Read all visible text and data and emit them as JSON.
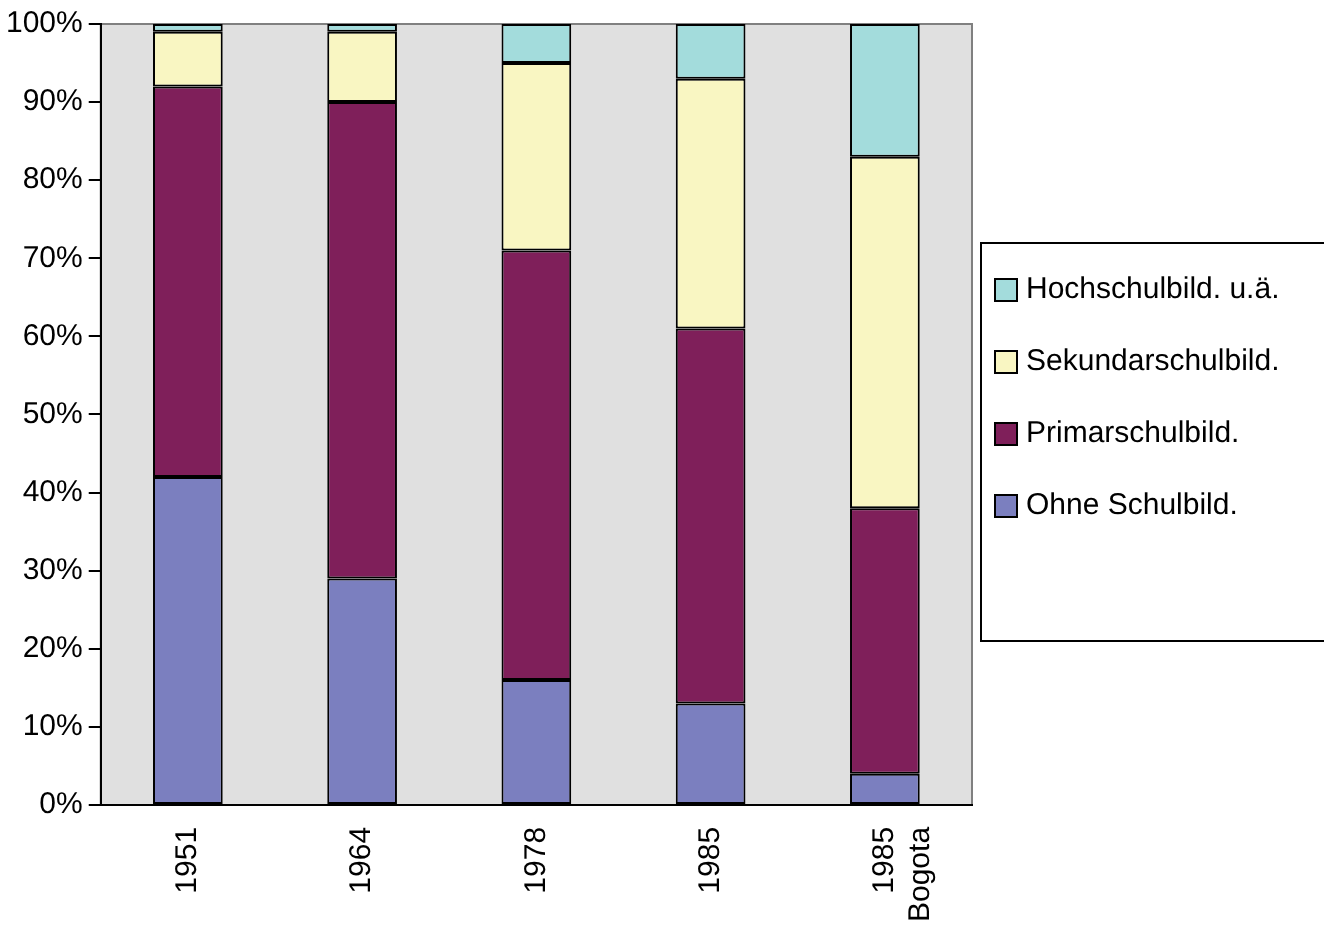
{
  "chart_data": {
    "type": "bar",
    "stacked": true,
    "categories": [
      "1951",
      "1964",
      "1978",
      "1985",
      "1985 Bogota"
    ],
    "series": [
      {
        "name": "Ohne Schulbild.",
        "color": "#7b7fbf",
        "values": [
          42,
          29,
          16,
          13,
          4
        ]
      },
      {
        "name": "Primarschulbild.",
        "color": "#7f1f5a",
        "values": [
          50,
          61,
          55,
          48,
          34
        ]
      },
      {
        "name": "Sekundarschulbild.",
        "color": "#f9f6c2",
        "values": [
          7,
          9,
          24,
          32,
          45
        ]
      },
      {
        "name": "Hochschulbild. u.ä.",
        "color": "#a3dcdc",
        "values": [
          1,
          1,
          5,
          7,
          17
        ]
      }
    ],
    "ylim": [
      0,
      100
    ],
    "yticks": [
      {
        "value": 0,
        "label": "0%"
      },
      {
        "value": 10,
        "label": "10%"
      },
      {
        "value": 20,
        "label": "20%"
      },
      {
        "value": 30,
        "label": "30%"
      },
      {
        "value": 40,
        "label": "40%"
      },
      {
        "value": 50,
        "label": "50%"
      },
      {
        "value": 60,
        "label": "60%"
      },
      {
        "value": 70,
        "label": "70%"
      },
      {
        "value": 80,
        "label": "80%"
      },
      {
        "value": 90,
        "label": "90%"
      },
      {
        "value": 100,
        "label": "100%"
      }
    ],
    "grid": false,
    "legend": "right"
  }
}
